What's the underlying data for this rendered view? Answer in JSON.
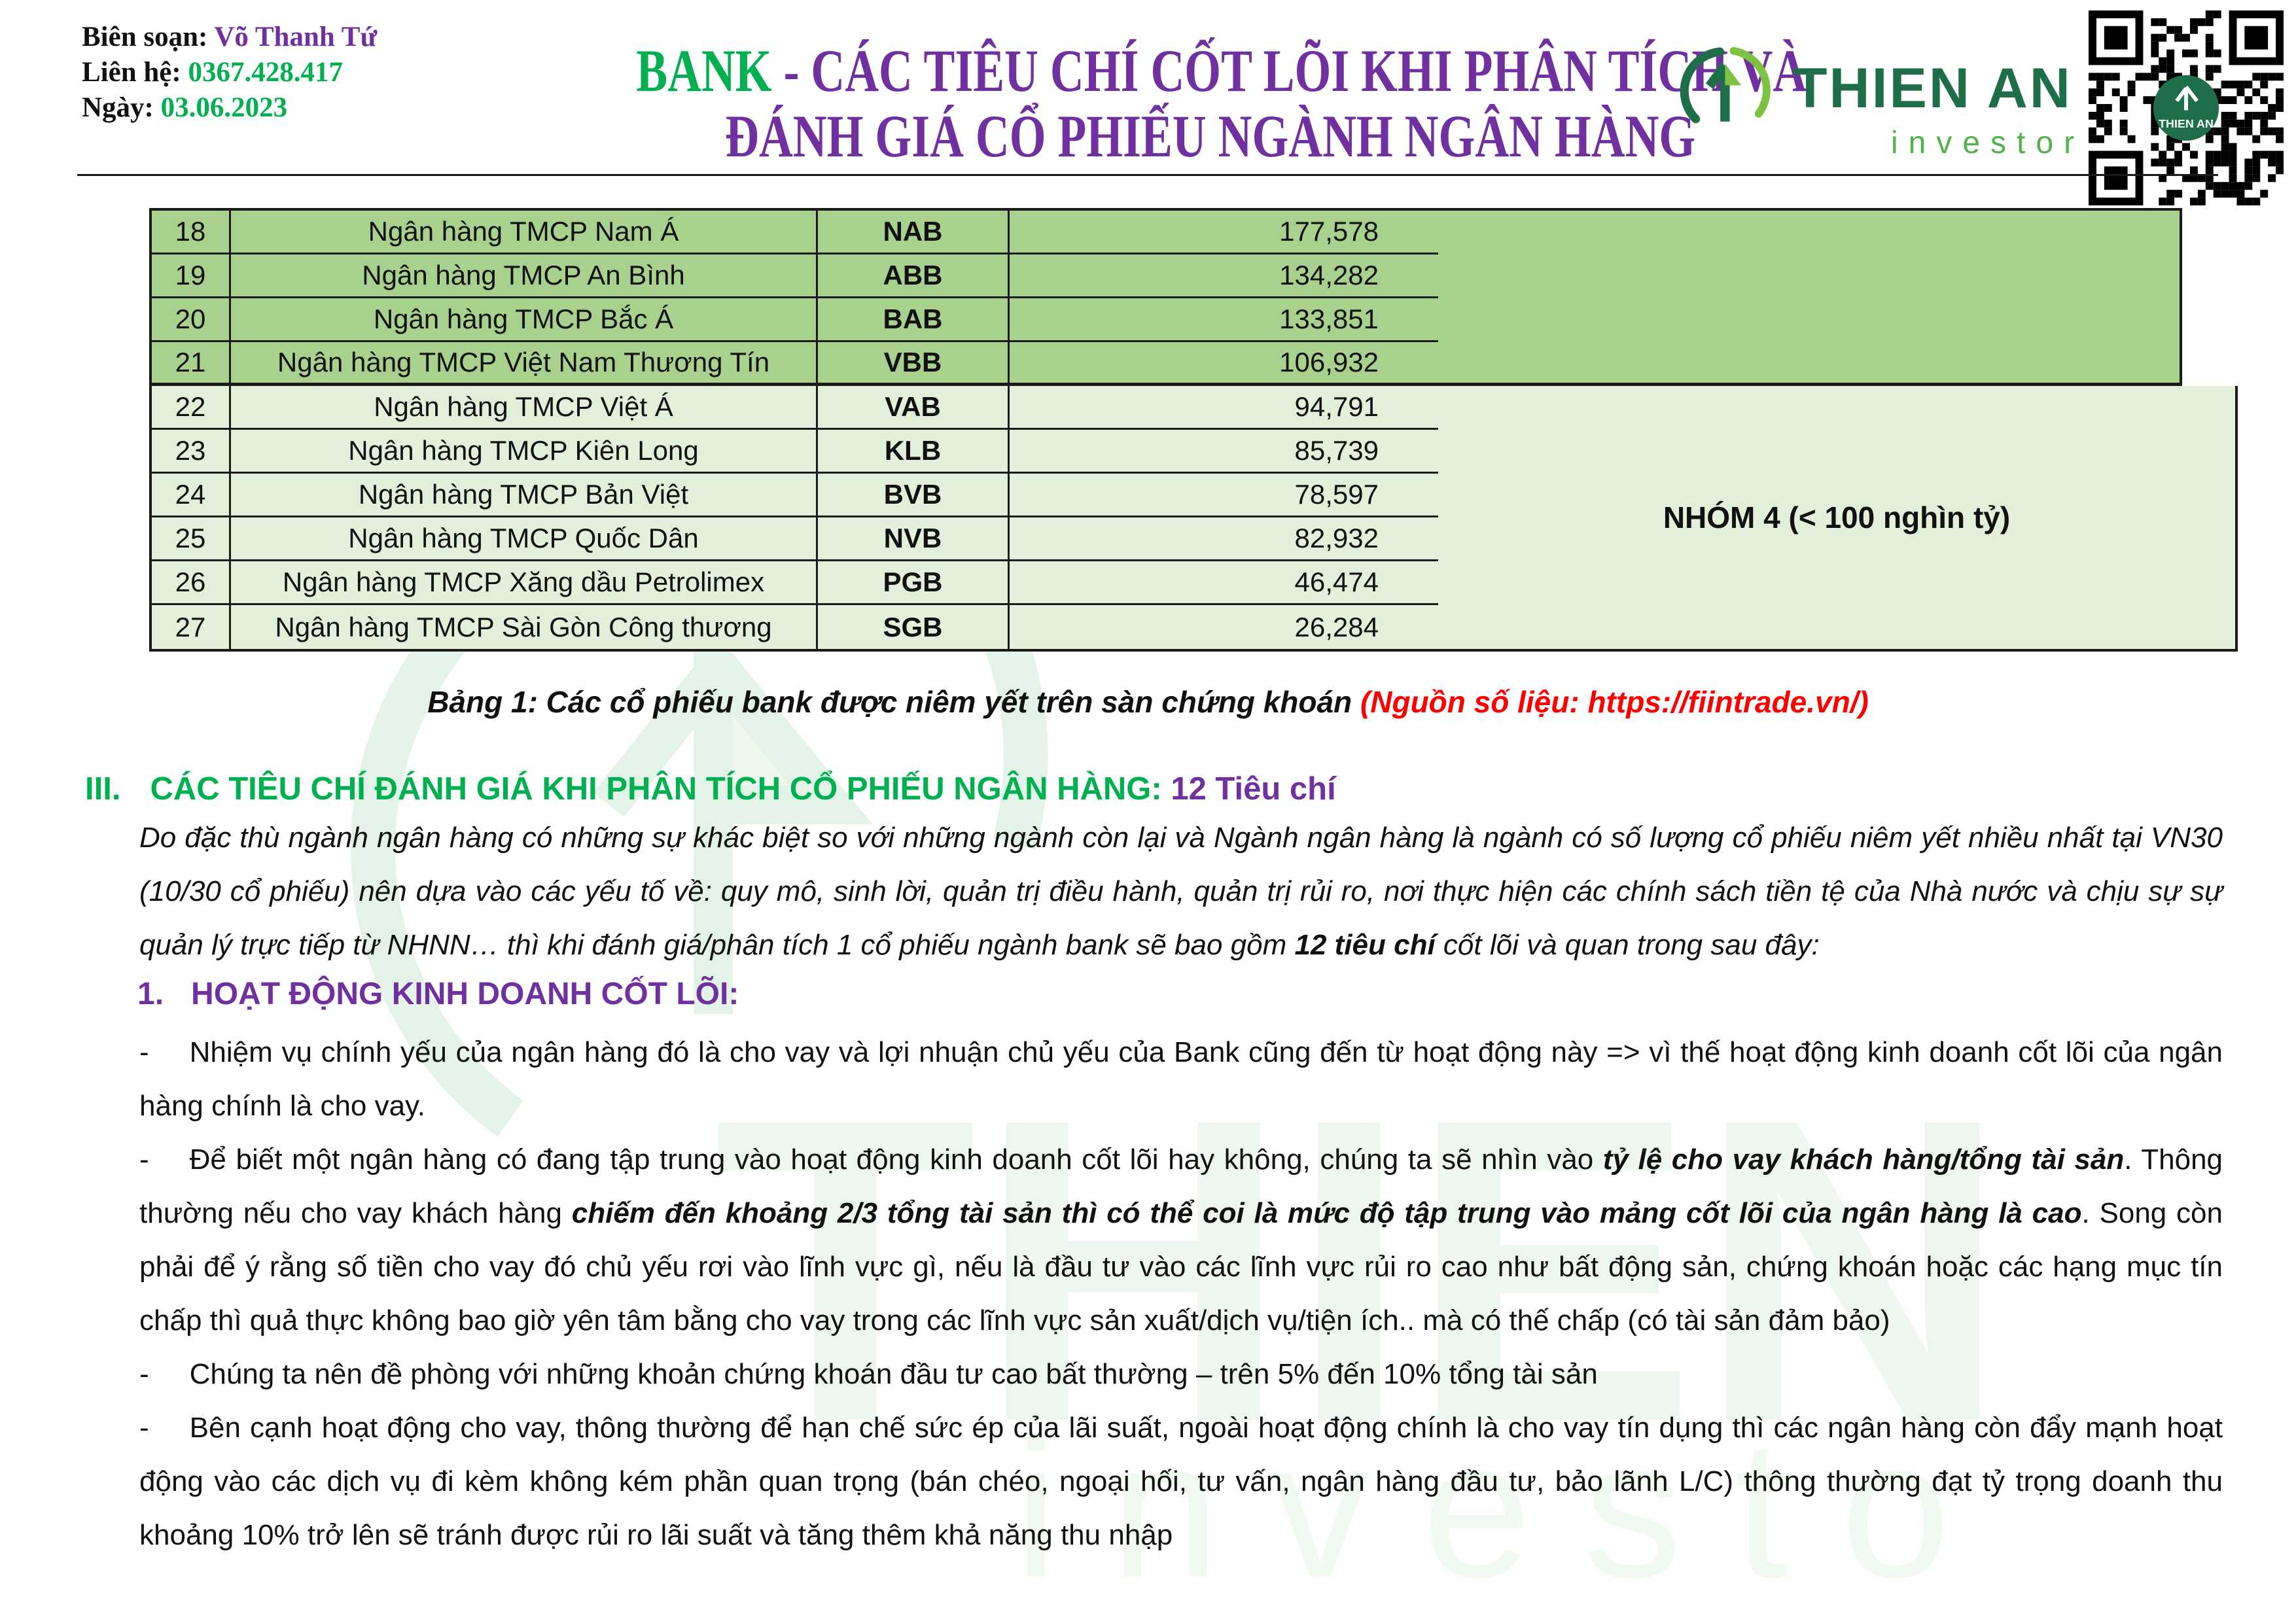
{
  "colors": {
    "green_accent": "#00B050",
    "purple_accent": "#7030A0",
    "red_accent": "#FF0000",
    "row_dark_green": "#A9D18E",
    "row_light_green": "#E2EFD9",
    "logo_dark_green": "#1E6E49",
    "logo_light_green": "#7DC242"
  },
  "header": {
    "byline_label": "Biên soạn:",
    "byline_value": "Võ Thanh Tứ",
    "contact_label": "Liên hệ:",
    "contact_value": "0367.428.417",
    "date_label": "Ngày:",
    "date_value": "03.06.2023",
    "title_bank": "BANK",
    "title_sep": " - ",
    "title_line1_rest": "CÁC TIÊU CHÍ CỐT LÕI KHI PHÂN TÍCH VÀ",
    "title_line2": "ĐÁNH GIÁ CỔ PHIẾU NGÀNH NGÂN HÀNG",
    "logo_name": "THIEN AN",
    "logo_tagline": "investor"
  },
  "table": {
    "rows": [
      {
        "no": "18",
        "name": "Ngân hàng TMCP Nam Á",
        "code": "NAB",
        "value": "177,578",
        "tier": "dark"
      },
      {
        "no": "19",
        "name": "Ngân hàng TMCP An Bình",
        "code": "ABB",
        "value": "134,282",
        "tier": "dark"
      },
      {
        "no": "20",
        "name": "Ngân hàng TMCP Bắc Á",
        "code": "BAB",
        "value": "133,851",
        "tier": "dark"
      },
      {
        "no": "21",
        "name": "Ngân hàng TMCP Việt Nam Thương Tín",
        "code": "VBB",
        "value": "106,932",
        "tier": "dark"
      },
      {
        "no": "22",
        "name": "Ngân hàng TMCP Việt Á",
        "code": "VAB",
        "value": "94,791",
        "tier": "light"
      },
      {
        "no": "23",
        "name": "Ngân hàng TMCP Kiên Long",
        "code": "KLB",
        "value": "85,739",
        "tier": "light"
      },
      {
        "no": "24",
        "name": "Ngân hàng TMCP Bản Việt",
        "code": "BVB",
        "value": "78,597",
        "tier": "light"
      },
      {
        "no": "25",
        "name": "Ngân hàng TMCP Quốc Dân",
        "code": "NVB",
        "value": "82,932",
        "tier": "light"
      },
      {
        "no": "26",
        "name": "Ngân hàng TMCP Xăng dầu Petrolimex",
        "code": "PGB",
        "value": "46,474",
        "tier": "light"
      },
      {
        "no": "27",
        "name": "Ngân hàng TMCP Sài Gòn Công thương",
        "code": "SGB",
        "value": "26,284",
        "tier": "light"
      }
    ],
    "group4_label": "NHÓM 4 (< 100 nghìn tỷ)"
  },
  "caption": {
    "main": "Bảng 1: Các cổ phiếu bank được niêm yết trên sàn chứng khoán ",
    "source": "(Nguồn số liệu: https://fiintrade.vn/)"
  },
  "section3": {
    "numeral": "III.",
    "title": "CÁC TIÊU CHÍ ĐÁNH GIÁ KHI PHÂN TÍCH CỔ PHIẾU NGÂN HÀNG: ",
    "suffix": "12 Tiêu chí"
  },
  "intro": {
    "segments": [
      {
        "t": "Do đặc thù ngành ngân hàng có những sự khác biệt so với những ngành còn lại và Ngành ngân hàng là ngành có số lượng cổ phiếu niêm yết nhiều nhất tại VN30 (10/30 cổ phiếu) nên dựa vào các yếu tố về: quy mô, sinh lời, quản trị điều hành, quản trị rủi ro, nơi thực hiện các chính sách tiền tệ của Nhà nước và chịu sự sự quản lý trực tiếp từ NHNN… thì khi đánh giá/phân tích 1 cổ phiếu ngành bank sẽ bao gồm ",
        "b": false
      },
      {
        "t": "12 tiêu chí",
        "b": true
      },
      {
        "t": " cốt lõi và quan trong sau đây:",
        "b": false
      }
    ]
  },
  "section1": {
    "numeral": "1.",
    "title": "HOẠT ĐỘNG KINH DOANH CỐT LÕI:"
  },
  "bullet_marker": "-",
  "bullets": [
    {
      "segments": [
        {
          "t": "Nhiệm vụ chính yếu của ngân hàng đó là cho vay và lợi nhuận chủ yếu của Bank cũng đến từ hoạt động này => vì thế hoạt động kinh doanh cốt lõi của ngân hàng chính là cho vay.",
          "b": false
        }
      ]
    },
    {
      "segments": [
        {
          "t": "Để biết một ngân hàng có đang tập trung vào hoạt động kinh doanh cốt lõi hay không, chúng ta sẽ nhìn vào ",
          "b": false
        },
        {
          "t": "tỷ lệ cho vay khách hàng/tổng tài sản",
          "b": true
        },
        {
          "t": ". Thông thường nếu cho vay khách hàng ",
          "b": false
        },
        {
          "t": "chiếm đến khoảng 2/3 tổng tài sản thì có thể coi là mức độ tập trung vào mảng cốt lõi của ngân hàng là cao",
          "b": true
        },
        {
          "t": ". Song còn phải để ý rằng số tiền cho vay đó chủ yếu rơi vào lĩnh vực gì, nếu là đầu tư vào các lĩnh vực rủi ro cao như bất động sản, chứng khoán hoặc các hạng mục tín chấp thì quả thực không bao giờ yên tâm bằng cho vay trong các lĩnh vực sản xuất/dịch vụ/tiện ích.. mà có thế chấp (có tài sản đảm bảo)",
          "b": false
        }
      ]
    },
    {
      "segments": [
        {
          "t": "Chúng ta nên đề phòng với những khoản chứng khoán đầu tư cao bất thường – trên 5% đến 10% tổng tài sản",
          "b": false
        }
      ]
    },
    {
      "segments": [
        {
          "t": "Bên cạnh hoạt động cho vay, thông thường để hạn chế sức ép của lãi suất, ngoài hoạt động chính là cho vay tín dụng thì các ngân hàng còn đẩy mạnh hoạt động vào các dịch vụ đi kèm không kém phần quan trọng (bán chéo, ngoại hối, tư vấn, ngân hàng đầu tư, bảo lãnh L/C) thông thường đạt tỷ trọng doanh thu khoảng 10% trở lên sẽ tránh được rủi ro lãi suất và tăng thêm khả năng thu nhập",
          "b": false
        }
      ]
    }
  ]
}
